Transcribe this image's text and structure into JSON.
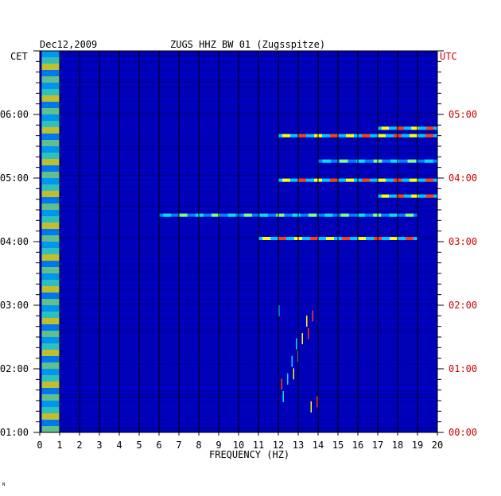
{
  "header": {
    "date": "Dec12,2009",
    "station": "ZUGS HHZ BW 01 (Zugsspitze)",
    "left_tz": "CET",
    "right_tz": "UTC"
  },
  "footer": {
    "mark": "ᴺ"
  },
  "colors": {
    "background": "#0000b4",
    "grid": "#000000",
    "utc_text": "#d00000"
  },
  "chart_data": {
    "type": "heatmap",
    "title": "ZUGS HHZ BW 01 (Zugsspitze)",
    "xlabel": "FREQUENCY (HZ)",
    "xlim": [
      0,
      20
    ],
    "x_ticks": [
      "0",
      "1",
      "2",
      "3",
      "4",
      "5",
      "6",
      "7",
      "8",
      "9",
      "10",
      "11",
      "12",
      "13",
      "14",
      "15",
      "16",
      "17",
      "18",
      "19",
      "20"
    ],
    "y_left_ticks": [
      "06:00",
      "05:00",
      "04:00",
      "03:00",
      "02:00",
      "01:00"
    ],
    "y_right_ticks": [
      "05:00",
      "04:00",
      "03:00",
      "02:00",
      "01:00",
      "00:00"
    ],
    "y_left_label": "CET",
    "y_right_label": "UTC",
    "time_range_cet": [
      "01:00",
      "07:00"
    ],
    "grid": true,
    "features": [
      {
        "name": "low-frequency band",
        "f_start": 0.1,
        "f_end": 1.0,
        "t_start": "01:00",
        "t_end": "07:00",
        "intensity": "high"
      },
      {
        "name": "line 05:47",
        "t": "05:47",
        "f_start": 17,
        "f_end": 20,
        "intensity": "high"
      },
      {
        "name": "line 05:40",
        "t": "05:40",
        "f_start": 12,
        "f_end": 20,
        "intensity": "high"
      },
      {
        "name": "line 05:16",
        "t": "05:16",
        "f_start": 14,
        "f_end": 20,
        "intensity": "medium"
      },
      {
        "name": "line 04:58",
        "t": "04:58",
        "f_start": 12,
        "f_end": 20,
        "intensity": "high"
      },
      {
        "name": "line 04:43",
        "t": "04:43",
        "f_start": 17,
        "f_end": 20,
        "intensity": "high"
      },
      {
        "name": "line 04:25",
        "t": "04:25",
        "f_start": 6,
        "f_end": 19,
        "intensity": "medium"
      },
      {
        "name": "line 04:03",
        "t": "04:03",
        "f_start": 11,
        "f_end": 19,
        "intensity": "high"
      },
      {
        "name": "spikes 12-14 Hz",
        "f_start": 12,
        "f_end": 14,
        "t_start": "01:00",
        "t_end": "03:00",
        "intensity": "medium"
      }
    ]
  }
}
